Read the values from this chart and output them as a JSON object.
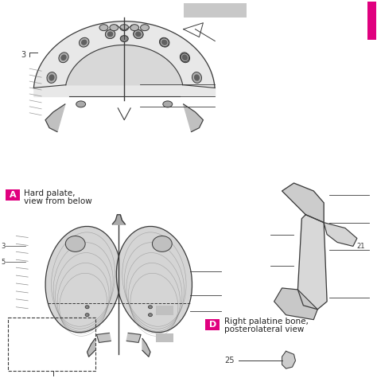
{
  "bg_color": "#ffffff",
  "pink_color": "#e0007f",
  "line_color": "#3a3a3a",
  "gray_light": "#c8c8c8",
  "gray_mid": "#a0a0a0",
  "gray_dark": "#707070",
  "label_A_text": "A",
  "label_A_line1": "Hard palate,",
  "label_A_line2": "view from below",
  "label_D_text": "D",
  "label_D_line1": "Right palatine bone,",
  "label_D_line2": "posterolateral view",
  "num_3": "3",
  "num_21": "21",
  "num_25": "25",
  "dpi": 100,
  "figsize": [
    4.74,
    4.75
  ]
}
